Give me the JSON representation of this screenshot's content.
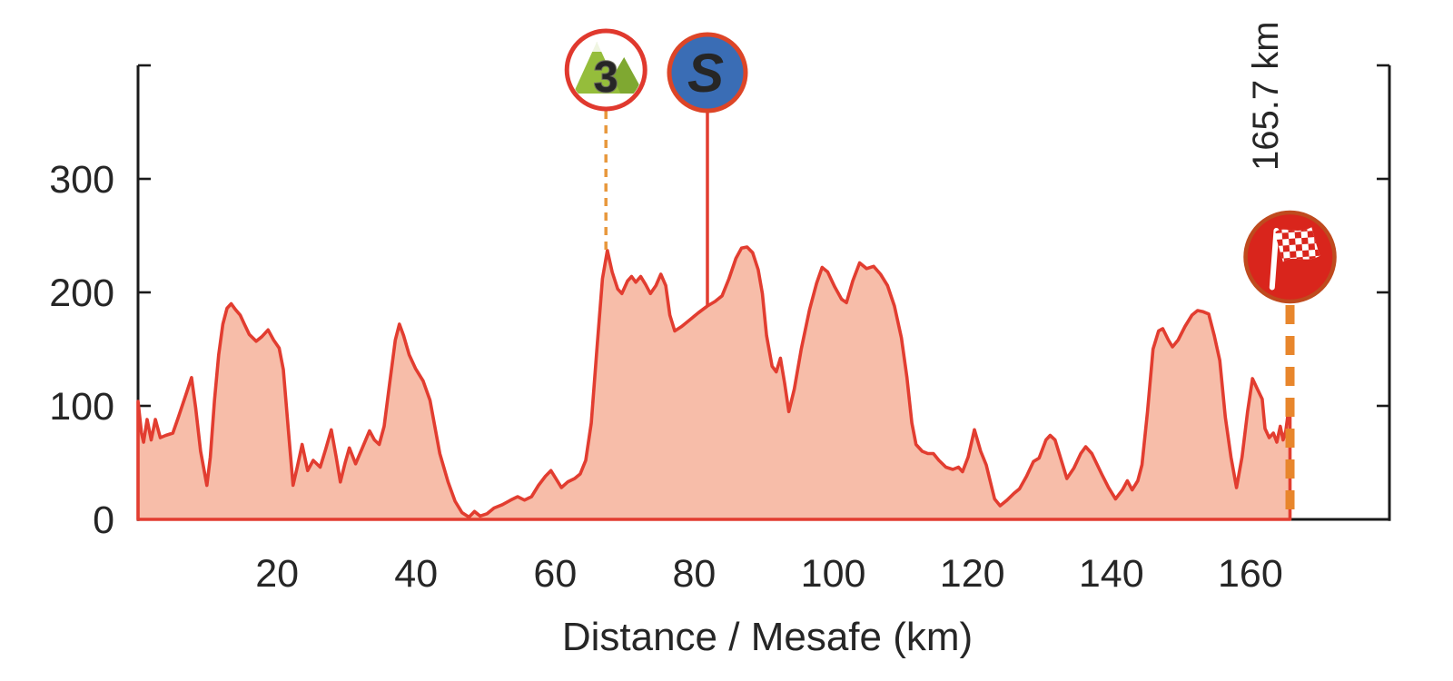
{
  "chart_data": {
    "type": "area",
    "xlabel": "Distance / Mesafe (km)",
    "ylabel": "",
    "xlim": [
      0,
      180
    ],
    "ylim": [
      0,
      400
    ],
    "x_ticks": [
      20,
      40,
      60,
      80,
      100,
      120,
      140,
      160
    ],
    "y_ticks_labeled": [
      0,
      100,
      200,
      300
    ],
    "y_tick_marks": [
      100,
      200,
      300,
      400
    ],
    "grid": false,
    "legend": "none",
    "colors": {
      "profile_line": "#e23d30",
      "area_fill": "#f7bda9",
      "axis": "#1a1a1a",
      "text": "#262626",
      "climb_dash": "#e8983d",
      "finish_dash": "#e8862c",
      "marker_ring_red": "#e0392e",
      "sprint_ring": "#dd4527",
      "sprint_blue": "#3a6db5",
      "finish_red": "#d9251c",
      "finish_ring": "#bf4a1e",
      "mountain_green": "#95bd3b",
      "mountain_green_dark": "#7fa831"
    },
    "markers": {
      "climb": {
        "type": "category-3-climb",
        "km": 67.3,
        "category_label": "3",
        "line_style": "dashed"
      },
      "sprint": {
        "type": "intermediate-sprint",
        "km": 81.9,
        "label": "S",
        "line_style": "solid"
      },
      "finish": {
        "type": "finish",
        "km": 165.7,
        "label": "165.7 km",
        "line_style": "dashed"
      }
    },
    "series": [
      {
        "name": "elevation-profile",
        "points": [
          [
            0,
            104
          ],
          [
            0.5,
            76
          ],
          [
            0.8,
            68
          ],
          [
            1.3,
            88
          ],
          [
            1.9,
            70
          ],
          [
            2.5,
            88
          ],
          [
            3.2,
            72
          ],
          [
            4,
            74
          ],
          [
            5,
            76
          ],
          [
            5.8,
            90
          ],
          [
            7,
            112
          ],
          [
            7.7,
            125
          ],
          [
            8.3,
            98
          ],
          [
            9,
            60
          ],
          [
            9.9,
            30
          ],
          [
            10.4,
            55
          ],
          [
            11,
            105
          ],
          [
            11.6,
            145
          ],
          [
            12.2,
            172
          ],
          [
            12.8,
            186
          ],
          [
            13.4,
            190
          ],
          [
            14,
            185
          ],
          [
            14.7,
            180
          ],
          [
            15.3,
            172
          ],
          [
            16,
            163
          ],
          [
            17,
            157
          ],
          [
            17.8,
            161
          ],
          [
            18.7,
            167
          ],
          [
            19.5,
            158
          ],
          [
            20.3,
            151
          ],
          [
            20.9,
            132
          ],
          [
            21.6,
            80
          ],
          [
            22.3,
            30
          ],
          [
            22.9,
            46
          ],
          [
            23.6,
            66
          ],
          [
            24.4,
            43
          ],
          [
            25.2,
            52
          ],
          [
            26.2,
            46
          ],
          [
            27,
            62
          ],
          [
            27.8,
            79
          ],
          [
            28.5,
            55
          ],
          [
            29.1,
            33
          ],
          [
            29.8,
            50
          ],
          [
            30.4,
            63
          ],
          [
            31.3,
            49
          ],
          [
            32.2,
            62
          ],
          [
            33.3,
            78
          ],
          [
            34,
            70
          ],
          [
            34.7,
            66
          ],
          [
            35.4,
            82
          ],
          [
            36.2,
            120
          ],
          [
            37,
            158
          ],
          [
            37.6,
            172
          ],
          [
            38.2,
            162
          ],
          [
            39,
            145
          ],
          [
            39.9,
            133
          ],
          [
            41,
            122
          ],
          [
            42,
            105
          ],
          [
            43.4,
            58
          ],
          [
            44.6,
            33
          ],
          [
            45.6,
            16
          ],
          [
            46.6,
            6
          ],
          [
            47.6,
            2
          ],
          [
            48.4,
            7
          ],
          [
            49.2,
            3
          ],
          [
            50.2,
            5
          ],
          [
            51.2,
            10
          ],
          [
            52.4,
            13
          ],
          [
            53.6,
            17
          ],
          [
            54.6,
            20
          ],
          [
            55.6,
            17
          ],
          [
            56.6,
            20
          ],
          [
            57.6,
            30
          ],
          [
            58.6,
            38
          ],
          [
            59.4,
            43
          ],
          [
            60.2,
            35
          ],
          [
            60.9,
            28
          ],
          [
            61.8,
            33
          ],
          [
            62.8,
            36
          ],
          [
            63.6,
            40
          ],
          [
            64.4,
            52
          ],
          [
            65.2,
            85
          ],
          [
            66,
            150
          ],
          [
            66.8,
            212
          ],
          [
            67.5,
            237
          ],
          [
            68.2,
            218
          ],
          [
            69,
            203
          ],
          [
            69.6,
            199
          ],
          [
            70.4,
            210
          ],
          [
            71,
            214
          ],
          [
            71.6,
            209
          ],
          [
            72.3,
            214
          ],
          [
            73,
            207
          ],
          [
            73.7,
            199
          ],
          [
            74.5,
            206
          ],
          [
            75.2,
            216
          ],
          [
            75.9,
            206
          ],
          [
            76.5,
            180
          ],
          [
            77.2,
            166
          ],
          [
            78.2,
            170
          ],
          [
            79.4,
            176
          ],
          [
            80.6,
            182
          ],
          [
            81.9,
            188
          ],
          [
            83,
            192
          ],
          [
            84,
            197
          ],
          [
            85,
            212
          ],
          [
            86,
            230
          ],
          [
            86.8,
            239
          ],
          [
            87.6,
            240
          ],
          [
            88.4,
            235
          ],
          [
            89.2,
            220
          ],
          [
            89.8,
            199
          ],
          [
            90.4,
            162
          ],
          [
            91.2,
            135
          ],
          [
            91.8,
            130
          ],
          [
            92.4,
            142
          ],
          [
            93,
            120
          ],
          [
            93.6,
            95
          ],
          [
            94.4,
            115
          ],
          [
            95.4,
            150
          ],
          [
            96.6,
            185
          ],
          [
            97.6,
            208
          ],
          [
            98.4,
            222
          ],
          [
            99.2,
            218
          ],
          [
            100.2,
            205
          ],
          [
            101.2,
            194
          ],
          [
            101.9,
            191
          ],
          [
            102.8,
            210
          ],
          [
            103.8,
            226
          ],
          [
            104.8,
            221
          ],
          [
            105.8,
            223
          ],
          [
            106.8,
            216
          ],
          [
            107.8,
            206
          ],
          [
            108.8,
            188
          ],
          [
            109.8,
            160
          ],
          [
            110.6,
            125
          ],
          [
            111.3,
            85
          ],
          [
            111.9,
            66
          ],
          [
            112.8,
            60
          ],
          [
            113.6,
            58
          ],
          [
            114.4,
            58
          ],
          [
            115.2,
            52
          ],
          [
            116.2,
            46
          ],
          [
            117.2,
            44
          ],
          [
            118,
            46
          ],
          [
            118.6,
            42
          ],
          [
            119.4,
            55
          ],
          [
            120.3,
            79
          ],
          [
            121.2,
            60
          ],
          [
            122,
            48
          ],
          [
            123.2,
            18
          ],
          [
            124,
            12
          ],
          [
            125,
            17
          ],
          [
            126,
            23
          ],
          [
            126.8,
            27
          ],
          [
            127.8,
            38
          ],
          [
            128.8,
            51
          ],
          [
            129.6,
            54
          ],
          [
            130.6,
            70
          ],
          [
            131.2,
            74
          ],
          [
            131.9,
            70
          ],
          [
            132.8,
            52
          ],
          [
            133.6,
            36
          ],
          [
            134.6,
            45
          ],
          [
            135.6,
            58
          ],
          [
            136.3,
            64
          ],
          [
            137.2,
            58
          ],
          [
            138.6,
            40
          ],
          [
            139.6,
            28
          ],
          [
            140.6,
            18
          ],
          [
            141.6,
            26
          ],
          [
            142.3,
            34
          ],
          [
            143,
            26
          ],
          [
            143.8,
            34
          ],
          [
            144.4,
            48
          ],
          [
            145.2,
            95
          ],
          [
            146,
            150
          ],
          [
            146.8,
            166
          ],
          [
            147.4,
            168
          ],
          [
            148.2,
            158
          ],
          [
            148.8,
            152
          ],
          [
            149.6,
            158
          ],
          [
            150.6,
            170
          ],
          [
            151.6,
            180
          ],
          [
            152.4,
            184
          ],
          [
            153.2,
            183
          ],
          [
            154,
            181
          ],
          [
            154.8,
            162
          ],
          [
            155.6,
            140
          ],
          [
            156.4,
            90
          ],
          [
            157.2,
            55
          ],
          [
            158,
            28
          ],
          [
            158.8,
            55
          ],
          [
            159.6,
            95
          ],
          [
            160.3,
            124
          ],
          [
            161,
            115
          ],
          [
            161.7,
            106
          ],
          [
            162.1,
            80
          ],
          [
            162.7,
            72
          ],
          [
            163.3,
            76
          ],
          [
            163.8,
            68
          ],
          [
            164.3,
            82
          ],
          [
            164.7,
            70
          ],
          [
            165.1,
            78
          ],
          [
            165.4,
            92
          ],
          [
            165.7,
            96
          ]
        ]
      }
    ]
  }
}
